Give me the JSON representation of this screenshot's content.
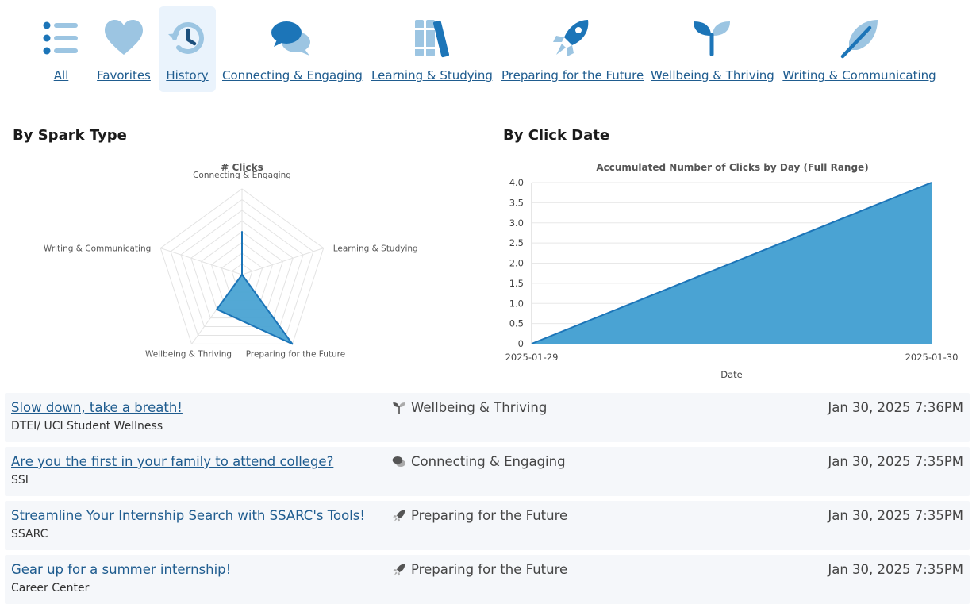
{
  "nav": {
    "categories": [
      {
        "label": "All",
        "icon": "list-icon"
      },
      {
        "label": "Favorites",
        "icon": "heart-icon"
      },
      {
        "label": "History",
        "icon": "history-icon",
        "active": true
      },
      {
        "label": "Connecting & Engaging",
        "icon": "chat-bubbles-icon"
      },
      {
        "label": "Learning & Studying",
        "icon": "books-icon"
      },
      {
        "label": "Preparing for the Future",
        "icon": "rocket-icon"
      },
      {
        "label": "Wellbeing & Thriving",
        "icon": "sprout-icon"
      },
      {
        "label": "Writing & Communicating",
        "icon": "feather-icon"
      }
    ]
  },
  "colors": {
    "accent_dark": "#1c75b8",
    "accent_light": "#9cc5e2",
    "fill": "#4aa3d3",
    "link": "#1f5c8f",
    "row_bg": "#f5f7fa"
  },
  "by_spark_type": {
    "heading": "By Spark Type"
  },
  "by_click_date": {
    "heading": "By Click Date"
  },
  "chart_data": [
    {
      "type": "radar",
      "title": "# Clicks",
      "categories": [
        "Connecting & Engaging",
        "Learning & Studying",
        "Preparing for the Future",
        "Wellbeing & Thriving",
        "Writing & Communicating"
      ],
      "values": [
        1,
        0,
        2,
        1,
        0
      ],
      "rlim": [
        0,
        2
      ]
    },
    {
      "type": "area",
      "title": "Accumulated Number of Clicks by Day (Full Range)",
      "xlabel": "Date",
      "ylabel": "",
      "x": [
        "2025-01-29",
        "2025-01-30"
      ],
      "values": [
        0,
        4
      ],
      "ylim": [
        0,
        4
      ],
      "yticks": [
        "4.0",
        "3.5",
        "3.0",
        "2.5",
        "2.0",
        "1.5",
        "1.0",
        "0.5",
        "0"
      ],
      "grid": true
    }
  ],
  "history": [
    {
      "title": "Slow down, take a breath!",
      "source": "DTEI/ UCI Student Wellness",
      "category": "Wellbeing & Thriving",
      "icon": "sprout-icon",
      "date": "Jan 30, 2025 7:36PM"
    },
    {
      "title": "Are you the first in your family to attend college?",
      "source": "SSI",
      "category": "Connecting & Engaging",
      "icon": "chat-bubbles-icon",
      "date": "Jan 30, 2025 7:35PM"
    },
    {
      "title": "Streamline Your Internship Search with SSARC's Tools!",
      "source": "SSARC",
      "category": "Preparing for the Future",
      "icon": "rocket-icon",
      "date": "Jan 30, 2025 7:35PM"
    },
    {
      "title": "Gear up for a summer internship!",
      "source": "Career Center",
      "category": "Preparing for the Future",
      "icon": "rocket-icon",
      "date": "Jan 30, 2025 7:35PM"
    }
  ]
}
